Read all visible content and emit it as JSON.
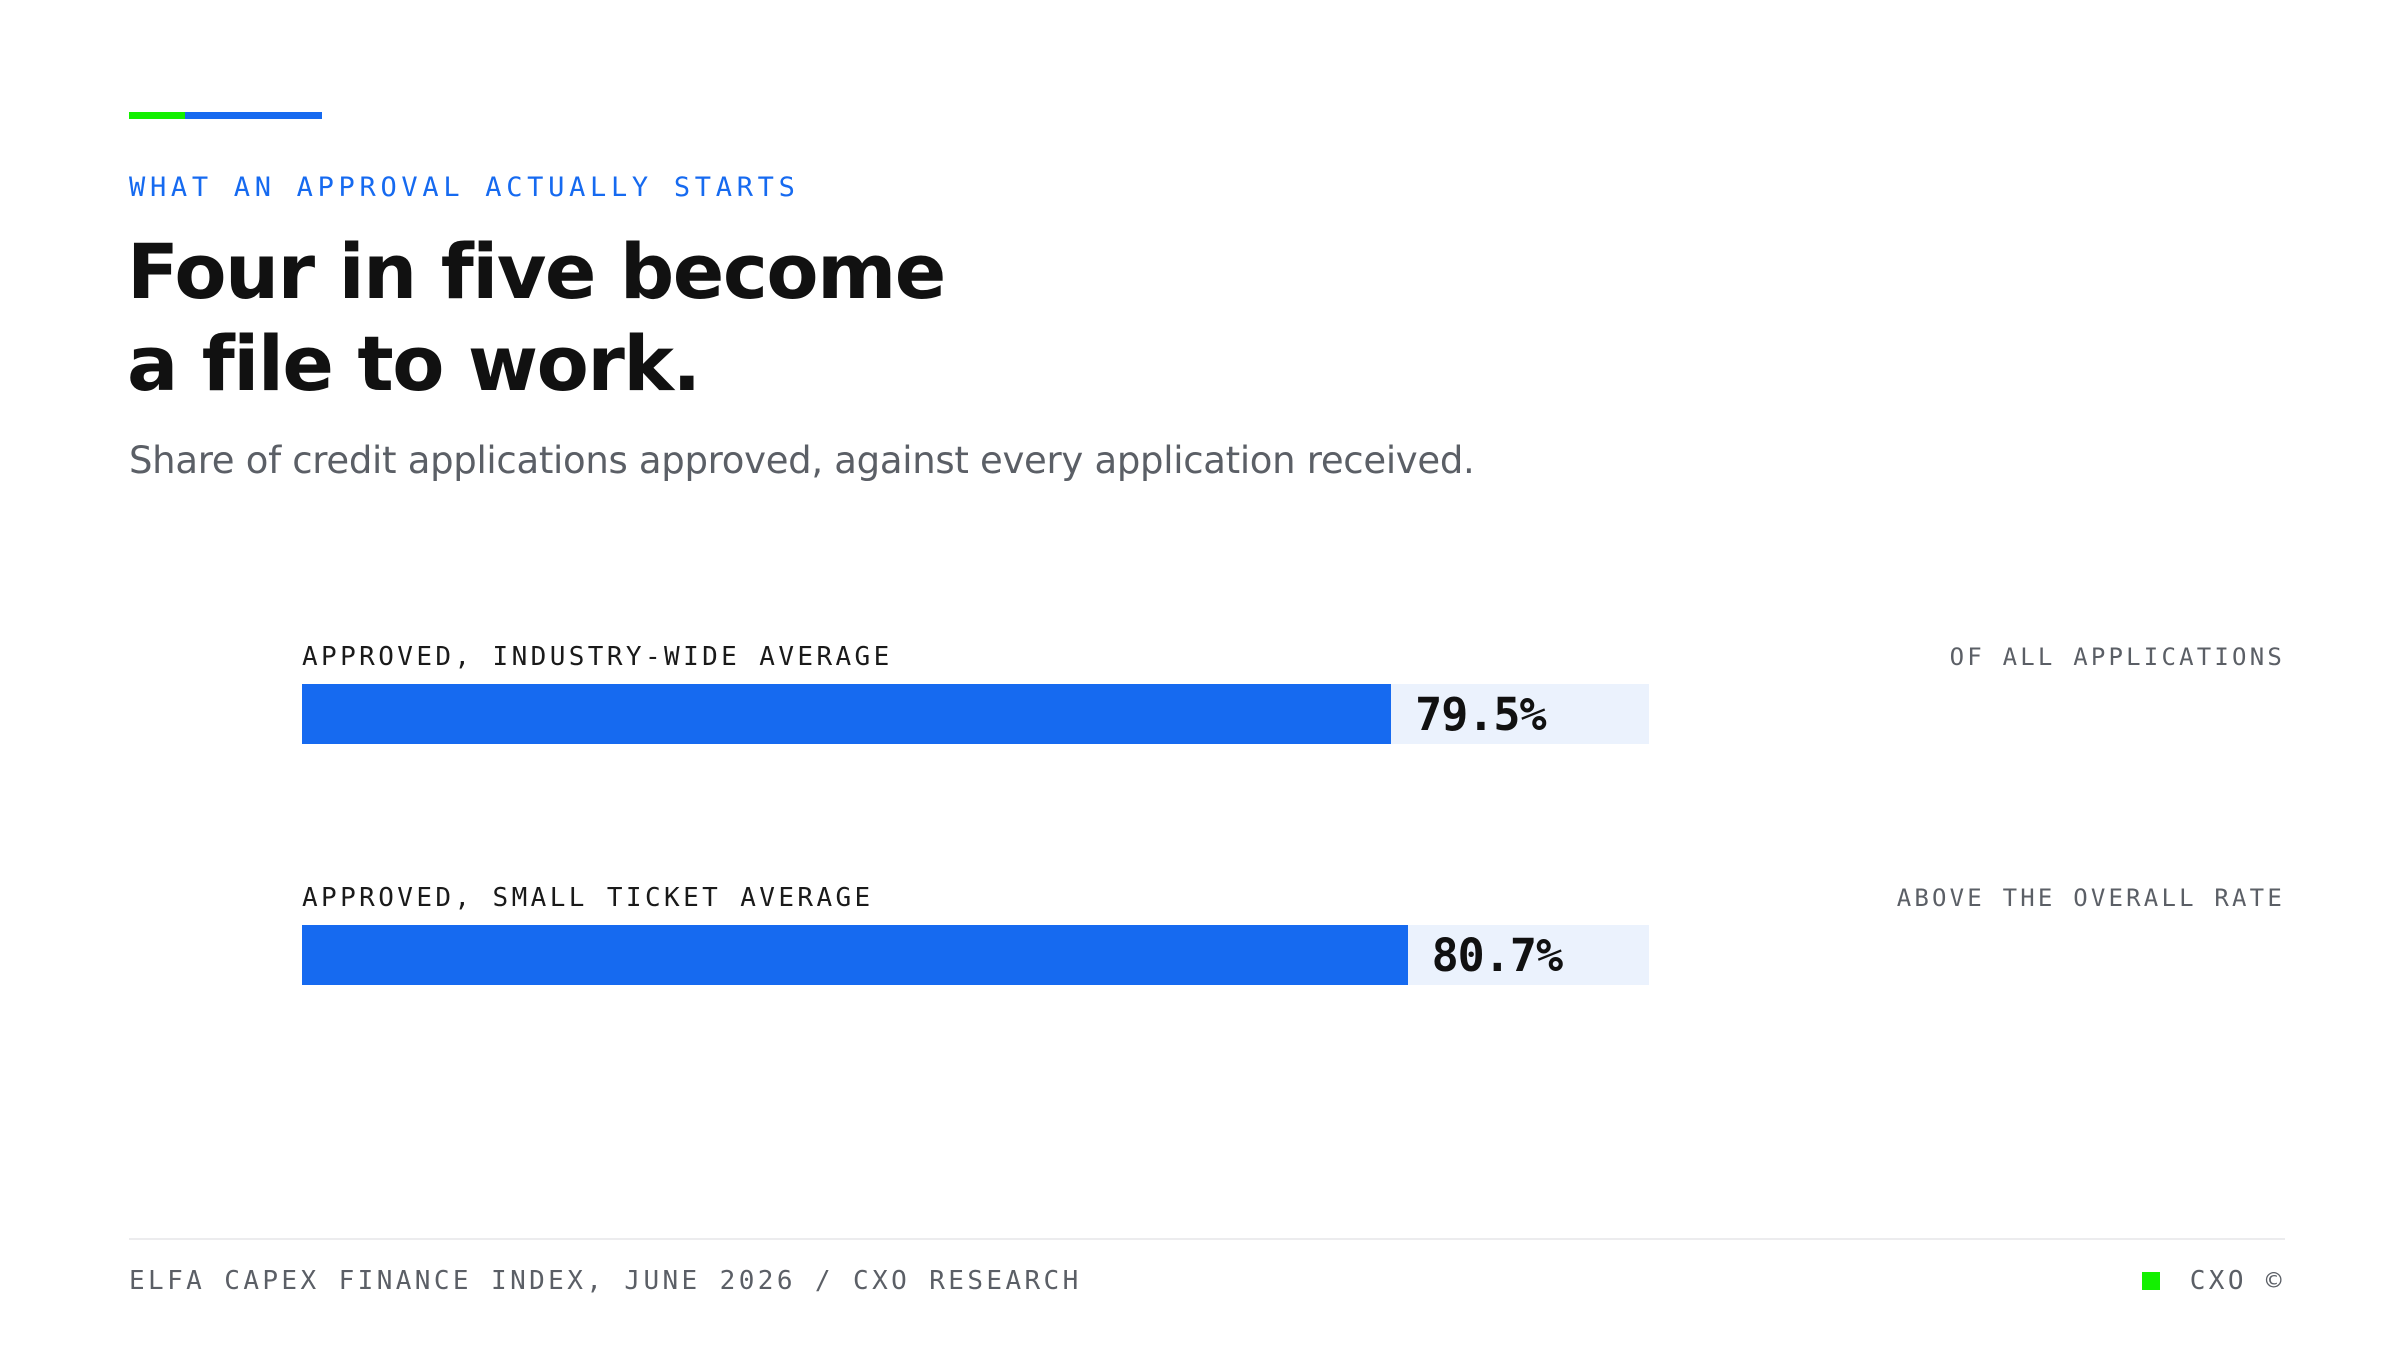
{
  "colors": {
    "accent_green": "#13f000",
    "accent_blue": "#166af0",
    "bar_fill": "#166af0",
    "bar_track": "#ebf2fd"
  },
  "eyebrow": "WHAT AN APPROVAL ACTUALLY STARTS",
  "title_lines": [
    "Four in five become",
    "a file to work."
  ],
  "subtitle": "Share of credit applications approved, against every application received.",
  "chart_data": {
    "type": "bar",
    "orientation": "horizontal",
    "title": "Four in five become a file to work.",
    "subtitle": "Share of credit applications approved, against every application received.",
    "xlim": [
      0,
      100
    ],
    "unit": "%",
    "grid": false,
    "legend": "none",
    "bars": [
      {
        "label": "APPROVED, INDUSTRY-WIDE AVERAGE",
        "value": 79.5,
        "value_label": "79.5%",
        "note": "OF ALL APPLICATIONS"
      },
      {
        "label": "APPROVED, SMALL TICKET AVERAGE",
        "value": 80.7,
        "value_label": "80.7%",
        "note": "ABOVE THE OVERALL RATE"
      }
    ]
  },
  "footer": {
    "source": "ELFA CAPEX FINANCE INDEX, JUNE 2026 / CXO RESEARCH",
    "brand": "CXO ©"
  }
}
